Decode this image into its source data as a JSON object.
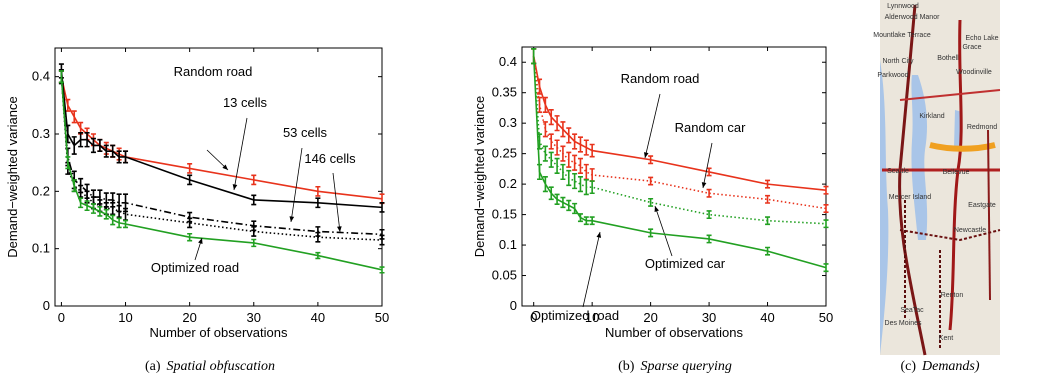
{
  "chart_data": [
    {
      "type": "line",
      "xlabel": "Number of observations",
      "ylabel": "Demand−weighted variance",
      "x": [
        0,
        1,
        2,
        3,
        4,
        5,
        6,
        7,
        8,
        9,
        10,
        20,
        30,
        40,
        50
      ],
      "xlim": [
        -1,
        50
      ],
      "ylim": [
        0,
        0.45
      ],
      "xticks": [
        0,
        10,
        20,
        30,
        40,
        50
      ],
      "yticks": [
        0,
        0.1,
        0.2,
        0.3,
        0.4
      ],
      "series": [
        {
          "name": "Random road",
          "color": "#e8331c",
          "dash": "solid",
          "values": [
            0.4,
            0.35,
            0.33,
            0.31,
            0.3,
            0.29,
            0.28,
            0.275,
            0.27,
            0.265,
            0.26,
            0.24,
            0.22,
            0.2,
            0.187
          ],
          "errors": [
            0.01,
            0.01,
            0.01,
            0.01,
            0.01,
            0.01,
            0.01,
            0.01,
            0.01,
            0.01,
            0.01,
            0.008,
            0.008,
            0.008,
            0.008
          ]
        },
        {
          "name": "13 cells",
          "color": "#000000",
          "dash": "solid",
          "values": [
            0.41,
            0.3,
            0.28,
            0.29,
            0.29,
            0.28,
            0.28,
            0.27,
            0.27,
            0.26,
            0.26,
            0.22,
            0.185,
            0.18,
            0.172
          ],
          "errors": [
            0.012,
            0.015,
            0.015,
            0.012,
            0.012,
            0.012,
            0.01,
            0.01,
            0.01,
            0.01,
            0.01,
            0.008,
            0.008,
            0.008,
            0.008
          ]
        },
        {
          "name": "53 cells",
          "color": "#000000",
          "dash": "dashdot",
          "values": [
            0.4,
            0.26,
            0.22,
            0.21,
            0.2,
            0.19,
            0.19,
            0.185,
            0.185,
            0.18,
            0.18,
            0.155,
            0.14,
            0.13,
            0.125
          ],
          "errors": [
            0.012,
            0.015,
            0.015,
            0.012,
            0.012,
            0.012,
            0.012,
            0.012,
            0.012,
            0.015,
            0.015,
            0.008,
            0.008,
            0.008,
            0.008
          ]
        },
        {
          "name": "146 cells",
          "color": "#000000",
          "dash": "dotted",
          "values": [
            0.4,
            0.24,
            0.21,
            0.2,
            0.19,
            0.18,
            0.175,
            0.17,
            0.17,
            0.165,
            0.16,
            0.145,
            0.13,
            0.12,
            0.115
          ],
          "errors": [
            0.01,
            0.01,
            0.01,
            0.01,
            0.01,
            0.01,
            0.01,
            0.01,
            0.01,
            0.01,
            0.01,
            0.008,
            0.008,
            0.008,
            0.008
          ]
        },
        {
          "name": "Optimized road",
          "color": "#22a022",
          "dash": "solid",
          "values": [
            0.4,
            0.25,
            0.21,
            0.18,
            0.175,
            0.17,
            0.165,
            0.16,
            0.15,
            0.145,
            0.143,
            0.12,
            0.11,
            0.088,
            0.063
          ],
          "errors": [
            0.01,
            0.01,
            0.01,
            0.008,
            0.008,
            0.008,
            0.008,
            0.008,
            0.008,
            0.008,
            0.006,
            0.006,
            0.006,
            0.005,
            0.005
          ]
        }
      ],
      "caption": {
        "label": "(a)",
        "text": "Spatial obfuscation"
      }
    },
    {
      "type": "line",
      "xlabel": "Number of observations",
      "ylabel": "Demand−weighted variance",
      "x": [
        0,
        1,
        2,
        3,
        4,
        5,
        6,
        7,
        8,
        9,
        10,
        20,
        30,
        40,
        50
      ],
      "xlim": [
        -2,
        50
      ],
      "ylim": [
        0,
        0.425
      ],
      "xticks": [
        0,
        10,
        20,
        30,
        40,
        50
      ],
      "yticks": [
        0,
        0.05,
        0.1,
        0.15,
        0.2,
        0.25,
        0.3,
        0.35,
        0.4
      ],
      "series": [
        {
          "name": "Random road",
          "color": "#e8331c",
          "dash": "solid",
          "values": [
            0.41,
            0.36,
            0.33,
            0.31,
            0.3,
            0.29,
            0.28,
            0.27,
            0.265,
            0.26,
            0.255,
            0.24,
            0.22,
            0.2,
            0.19
          ],
          "errors": [
            0.012,
            0.012,
            0.012,
            0.012,
            0.012,
            0.012,
            0.012,
            0.012,
            0.012,
            0.012,
            0.01,
            0.006,
            0.006,
            0.006,
            0.006
          ]
        },
        {
          "name": "Random car",
          "color": "#e8331c",
          "dash": "dotted",
          "values": [
            0.41,
            0.33,
            0.29,
            0.27,
            0.26,
            0.25,
            0.24,
            0.235,
            0.23,
            0.22,
            0.215,
            0.205,
            0.185,
            0.175,
            0.16
          ],
          "errors": [
            0.012,
            0.012,
            0.012,
            0.012,
            0.012,
            0.012,
            0.012,
            0.012,
            0.012,
            0.012,
            0.01,
            0.006,
            0.006,
            0.006,
            0.006
          ]
        },
        {
          "name": "Optimized car",
          "color": "#22a022",
          "dash": "dotted",
          "values": [
            0.41,
            0.27,
            0.25,
            0.24,
            0.23,
            0.22,
            0.21,
            0.205,
            0.2,
            0.195,
            0.195,
            0.17,
            0.15,
            0.14,
            0.135
          ],
          "errors": [
            0.012,
            0.012,
            0.012,
            0.012,
            0.012,
            0.012,
            0.012,
            0.012,
            0.012,
            0.012,
            0.01,
            0.006,
            0.006,
            0.006,
            0.006
          ]
        },
        {
          "name": "Optimized road",
          "color": "#22a022",
          "dash": "solid",
          "values": [
            0.41,
            0.22,
            0.2,
            0.185,
            0.175,
            0.17,
            0.165,
            0.16,
            0.145,
            0.14,
            0.14,
            0.12,
            0.11,
            0.09,
            0.063
          ],
          "errors": [
            0.012,
            0.012,
            0.012,
            0.01,
            0.008,
            0.008,
            0.008,
            0.008,
            0.006,
            0.006,
            0.006,
            0.006,
            0.006,
            0.006,
            0.006
          ]
        }
      ],
      "caption": {
        "label": "(b)",
        "text": "Sparse querying"
      }
    }
  ],
  "map": {
    "places": [
      "Lynnwood",
      "Alderwood Manor",
      "Mountlake Terrace",
      "Echo Lake",
      "Bothell",
      "Grace",
      "North City",
      "Woodinville",
      "Parkwood",
      "Kirkland",
      "Redmond",
      "Seattle",
      "Bellevue",
      "Mercer Island",
      "Eastgate",
      "Newcastle",
      "Renton",
      "SeaTac",
      "Des Moines",
      "Kent"
    ],
    "caption": {
      "label": "(c)",
      "text": "Demands)"
    }
  }
}
